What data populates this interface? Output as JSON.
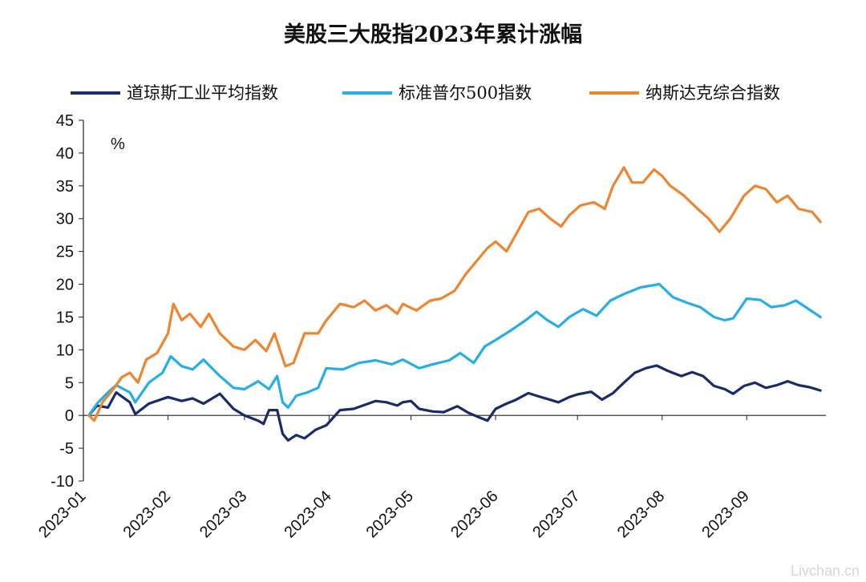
{
  "chart_data": {
    "type": "line",
    "title": "美股三大股指2023年累计涨幅",
    "unit_label": "%",
    "xlabel": "",
    "ylabel": "",
    "ylim": [
      -10,
      45
    ],
    "yticks": [
      "-10",
      "-5",
      "0",
      "5",
      "10",
      "15",
      "20",
      "25",
      "30",
      "35",
      "40",
      "45"
    ],
    "xlim": [
      "2023-01-01",
      "2023-09-30"
    ],
    "xticks": [
      "2023-01",
      "2023-02",
      "2023-03",
      "2023-04",
      "2023-05",
      "2023-06",
      "2023-07",
      "2023-08",
      "2023-09"
    ],
    "grid": false,
    "legend_position": "top",
    "series": [
      {
        "name": "道琼斯工业平均指数",
        "color": "#1b2a6b",
        "points": [
          [
            "2023-01-03",
            0
          ],
          [
            "2023-01-06",
            1.5
          ],
          [
            "2023-01-10",
            1.2
          ],
          [
            "2023-01-13",
            3.5
          ],
          [
            "2023-01-18",
            2.0
          ],
          [
            "2023-01-20",
            0.2
          ],
          [
            "2023-01-25",
            1.8
          ],
          [
            "2023-02-01",
            2.8
          ],
          [
            "2023-02-06",
            2.2
          ],
          [
            "2023-02-10",
            2.6
          ],
          [
            "2023-02-14",
            1.8
          ],
          [
            "2023-02-20",
            3.3
          ],
          [
            "2023-02-25",
            1.0
          ],
          [
            "2023-03-01",
            0.0
          ],
          [
            "2023-03-06",
            -0.8
          ],
          [
            "2023-03-08",
            -1.3
          ],
          [
            "2023-03-10",
            0.8
          ],
          [
            "2023-03-13",
            0.8
          ],
          [
            "2023-03-15",
            -2.8
          ],
          [
            "2023-03-17",
            -3.8
          ],
          [
            "2023-03-20",
            -3.0
          ],
          [
            "2023-03-23",
            -3.5
          ],
          [
            "2023-03-27",
            -2.2
          ],
          [
            "2023-03-31",
            -1.5
          ],
          [
            "2023-04-05",
            0.8
          ],
          [
            "2023-04-10",
            1.0
          ],
          [
            "2023-04-14",
            1.6
          ],
          [
            "2023-04-18",
            2.2
          ],
          [
            "2023-04-22",
            2.0
          ],
          [
            "2023-04-26",
            1.5
          ],
          [
            "2023-04-28",
            2.0
          ],
          [
            "2023-05-01",
            2.2
          ],
          [
            "2023-05-04",
            1.0
          ],
          [
            "2023-05-09",
            0.6
          ],
          [
            "2023-05-13",
            0.5
          ],
          [
            "2023-05-18",
            1.4
          ],
          [
            "2023-05-22",
            0.4
          ],
          [
            "2023-05-26",
            -0.3
          ],
          [
            "2023-05-29",
            -0.8
          ],
          [
            "2023-06-01",
            1.0
          ],
          [
            "2023-06-05",
            1.8
          ],
          [
            "2023-06-08",
            2.3
          ],
          [
            "2023-06-13",
            3.4
          ],
          [
            "2023-06-16",
            3.0
          ],
          [
            "2023-06-20",
            2.5
          ],
          [
            "2023-06-24",
            2.0
          ],
          [
            "2023-06-28",
            2.8
          ],
          [
            "2023-07-01",
            3.2
          ],
          [
            "2023-07-06",
            3.6
          ],
          [
            "2023-07-10",
            2.4
          ],
          [
            "2023-07-14",
            3.4
          ],
          [
            "2023-07-18",
            5.0
          ],
          [
            "2023-07-22",
            6.5
          ],
          [
            "2023-07-26",
            7.2
          ],
          [
            "2023-07-30",
            7.6
          ],
          [
            "2023-08-03",
            6.8
          ],
          [
            "2023-08-08",
            6.0
          ],
          [
            "2023-08-12",
            6.6
          ],
          [
            "2023-08-16",
            6.0
          ],
          [
            "2023-08-20",
            4.5
          ],
          [
            "2023-08-24",
            4.0
          ],
          [
            "2023-08-27",
            3.3
          ],
          [
            "2023-08-31",
            4.5
          ],
          [
            "2023-09-04",
            5.0
          ],
          [
            "2023-09-08",
            4.2
          ],
          [
            "2023-09-12",
            4.6
          ],
          [
            "2023-09-16",
            5.2
          ],
          [
            "2023-09-20",
            4.6
          ],
          [
            "2023-09-24",
            4.3
          ],
          [
            "2023-09-28",
            3.8
          ]
        ]
      },
      {
        "name": "标准普尔500指数",
        "color": "#27aee8",
        "points": [
          [
            "2023-01-03",
            0
          ],
          [
            "2023-01-06",
            1.8
          ],
          [
            "2023-01-10",
            3.5
          ],
          [
            "2023-01-13",
            4.6
          ],
          [
            "2023-01-18",
            3.5
          ],
          [
            "2023-01-20",
            2.0
          ],
          [
            "2023-01-25",
            5.0
          ],
          [
            "2023-01-30",
            6.5
          ],
          [
            "2023-02-02",
            9.0
          ],
          [
            "2023-02-06",
            7.5
          ],
          [
            "2023-02-10",
            7.0
          ],
          [
            "2023-02-14",
            8.5
          ],
          [
            "2023-02-20",
            6.0
          ],
          [
            "2023-02-25",
            4.2
          ],
          [
            "2023-03-01",
            4.0
          ],
          [
            "2023-03-06",
            5.2
          ],
          [
            "2023-03-10",
            4.0
          ],
          [
            "2023-03-13",
            6.0
          ],
          [
            "2023-03-15",
            2.0
          ],
          [
            "2023-03-17",
            1.2
          ],
          [
            "2023-03-20",
            3.0
          ],
          [
            "2023-03-24",
            3.5
          ],
          [
            "2023-03-28",
            4.2
          ],
          [
            "2023-03-31",
            7.2
          ],
          [
            "2023-04-06",
            7.0
          ],
          [
            "2023-04-12",
            8.0
          ],
          [
            "2023-04-18",
            8.4
          ],
          [
            "2023-04-24",
            7.8
          ],
          [
            "2023-04-28",
            8.5
          ],
          [
            "2023-05-04",
            7.2
          ],
          [
            "2023-05-09",
            7.8
          ],
          [
            "2023-05-15",
            8.4
          ],
          [
            "2023-05-19",
            9.5
          ],
          [
            "2023-05-24",
            8.0
          ],
          [
            "2023-05-28",
            10.5
          ],
          [
            "2023-06-01",
            11.5
          ],
          [
            "2023-06-06",
            12.8
          ],
          [
            "2023-06-12",
            14.5
          ],
          [
            "2023-06-16",
            15.8
          ],
          [
            "2023-06-20",
            14.5
          ],
          [
            "2023-06-24",
            13.5
          ],
          [
            "2023-06-28",
            15.0
          ],
          [
            "2023-07-03",
            16.2
          ],
          [
            "2023-07-08",
            15.2
          ],
          [
            "2023-07-13",
            17.5
          ],
          [
            "2023-07-18",
            18.5
          ],
          [
            "2023-07-24",
            19.5
          ],
          [
            "2023-07-31",
            20.0
          ],
          [
            "2023-08-05",
            18.0
          ],
          [
            "2023-08-10",
            17.2
          ],
          [
            "2023-08-15",
            16.5
          ],
          [
            "2023-08-20",
            15.0
          ],
          [
            "2023-08-24",
            14.5
          ],
          [
            "2023-08-27",
            14.8
          ],
          [
            "2023-09-01",
            17.8
          ],
          [
            "2023-09-06",
            17.6
          ],
          [
            "2023-09-10",
            16.5
          ],
          [
            "2023-09-15",
            16.8
          ],
          [
            "2023-09-19",
            17.5
          ],
          [
            "2023-09-23",
            16.4
          ],
          [
            "2023-09-28",
            15.0
          ]
        ]
      },
      {
        "name": "纳斯达克综合指数",
        "color": "#ee8530",
        "points": [
          [
            "2023-01-03",
            0
          ],
          [
            "2023-01-05",
            -0.8
          ],
          [
            "2023-01-08",
            2.0
          ],
          [
            "2023-01-12",
            4.0
          ],
          [
            "2023-01-15",
            5.8
          ],
          [
            "2023-01-18",
            6.5
          ],
          [
            "2023-01-21",
            5.0
          ],
          [
            "2023-01-24",
            8.5
          ],
          [
            "2023-01-28",
            9.5
          ],
          [
            "2023-02-01",
            12.5
          ],
          [
            "2023-02-03",
            17.0
          ],
          [
            "2023-02-06",
            14.5
          ],
          [
            "2023-02-09",
            15.5
          ],
          [
            "2023-02-13",
            13.5
          ],
          [
            "2023-02-16",
            15.5
          ],
          [
            "2023-02-20",
            12.5
          ],
          [
            "2023-02-25",
            10.5
          ],
          [
            "2023-03-01",
            10.0
          ],
          [
            "2023-03-05",
            11.5
          ],
          [
            "2023-03-09",
            9.8
          ],
          [
            "2023-03-12",
            12.5
          ],
          [
            "2023-03-14",
            10.0
          ],
          [
            "2023-03-16",
            7.5
          ],
          [
            "2023-03-19",
            8.0
          ],
          [
            "2023-03-23",
            12.5
          ],
          [
            "2023-03-28",
            12.5
          ],
          [
            "2023-03-31",
            14.5
          ],
          [
            "2023-04-05",
            17.0
          ],
          [
            "2023-04-10",
            16.5
          ],
          [
            "2023-04-14",
            17.5
          ],
          [
            "2023-04-18",
            16.0
          ],
          [
            "2023-04-22",
            16.8
          ],
          [
            "2023-04-26",
            15.5
          ],
          [
            "2023-04-28",
            17.0
          ],
          [
            "2023-05-03",
            16.0
          ],
          [
            "2023-05-08",
            17.5
          ],
          [
            "2023-05-12",
            17.8
          ],
          [
            "2023-05-17",
            19.0
          ],
          [
            "2023-05-21",
            21.5
          ],
          [
            "2023-05-25",
            23.5
          ],
          [
            "2023-05-29",
            25.5
          ],
          [
            "2023-06-01",
            26.5
          ],
          [
            "2023-06-05",
            25.0
          ],
          [
            "2023-06-09",
            28.0
          ],
          [
            "2023-06-13",
            31.0
          ],
          [
            "2023-06-17",
            31.5
          ],
          [
            "2023-06-21",
            30.0
          ],
          [
            "2023-06-25",
            28.8
          ],
          [
            "2023-06-28",
            30.5
          ],
          [
            "2023-07-02",
            32.0
          ],
          [
            "2023-07-07",
            32.5
          ],
          [
            "2023-07-11",
            31.5
          ],
          [
            "2023-07-14",
            35.0
          ],
          [
            "2023-07-18",
            37.8
          ],
          [
            "2023-07-21",
            35.5
          ],
          [
            "2023-07-25",
            35.5
          ],
          [
            "2023-07-29",
            37.5
          ],
          [
            "2023-08-01",
            36.5
          ],
          [
            "2023-08-04",
            35.0
          ],
          [
            "2023-08-09",
            33.5
          ],
          [
            "2023-08-14",
            31.5
          ],
          [
            "2023-08-18",
            30.0
          ],
          [
            "2023-08-22",
            28.0
          ],
          [
            "2023-08-26",
            30.0
          ],
          [
            "2023-08-31",
            33.5
          ],
          [
            "2023-09-04",
            35.0
          ],
          [
            "2023-09-08",
            34.5
          ],
          [
            "2023-09-12",
            32.5
          ],
          [
            "2023-09-16",
            33.5
          ],
          [
            "2023-09-20",
            31.5
          ],
          [
            "2023-09-25",
            31.0
          ],
          [
            "2023-09-28",
            29.5
          ]
        ]
      }
    ]
  },
  "watermark": "Livchan.cn"
}
